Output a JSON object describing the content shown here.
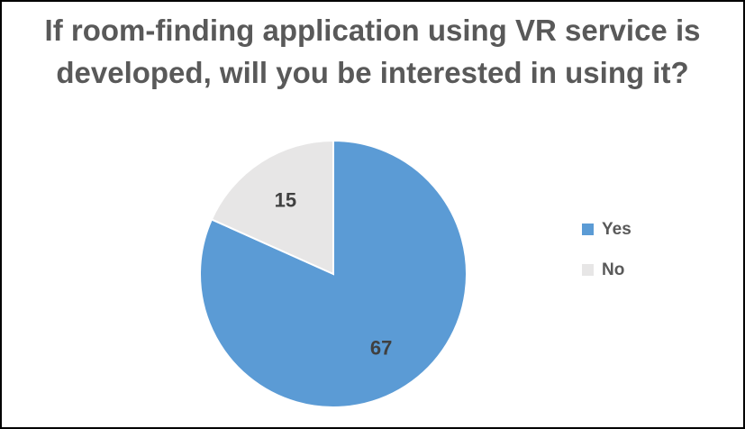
{
  "chart_data": {
    "type": "pie",
    "title_lines": [
      "If room-finding application using VR service is",
      "developed, will you be interested in using it?"
    ],
    "categories": [
      "Yes",
      "No"
    ],
    "values": [
      67,
      15
    ],
    "data_labels": [
      "67",
      "15"
    ],
    "colors": [
      "#5b9bd5",
      "#e7e6e6"
    ],
    "legend_position": "right"
  }
}
